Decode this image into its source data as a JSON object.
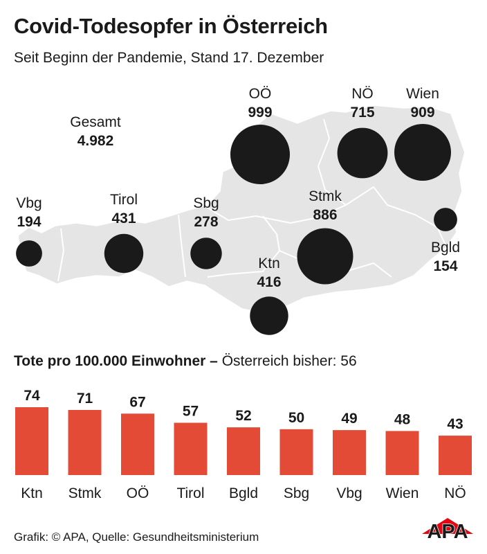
{
  "title": "Covid-Todesopfer in Österreich",
  "subtitle": "Seit Beginn der Pandemie, Stand 17. Dezember",
  "total": {
    "label": "Gesamt",
    "value": "4.982"
  },
  "regions": [
    {
      "label": "Vbg",
      "value": "194",
      "deaths": 194
    },
    {
      "label": "Tirol",
      "value": "431",
      "deaths": 431
    },
    {
      "label": "Sbg",
      "value": "278",
      "deaths": 278
    },
    {
      "label": "OÖ",
      "value": "999",
      "deaths": 999
    },
    {
      "label": "NÖ",
      "value": "715",
      "deaths": 715
    },
    {
      "label": "Wien",
      "value": "909",
      "deaths": 909
    },
    {
      "label": "Stmk",
      "value": "886",
      "deaths": 886
    },
    {
      "label": "Ktn",
      "value": "416",
      "deaths": 416
    },
    {
      "label": "Bgld",
      "value": "154",
      "deaths": 154
    }
  ],
  "bar_heading": {
    "bold": "Tote pro 100.000 Einwohner –",
    "rest": " Österreich bisher: 56"
  },
  "chart_data": {
    "type": "bar",
    "title": "Tote pro 100.000 Einwohner – Österreich bisher: 56",
    "categories": [
      "Ktn",
      "Stmk",
      "OÖ",
      "Tirol",
      "Bgld",
      "Sbg",
      "Vbg",
      "Wien",
      "NÖ"
    ],
    "values": [
      74,
      71,
      67,
      57,
      52,
      50,
      49,
      48,
      43
    ],
    "color": "#e34b37"
  },
  "colors": {
    "bar": "#e34b37",
    "bubble": "#1a1a1a",
    "map": "#e5e5e5",
    "logo_red": "#e30613"
  },
  "footer": "Grafik: © APA, Quelle: Gesundheitsministerium",
  "logo": {
    "text": "APA"
  }
}
